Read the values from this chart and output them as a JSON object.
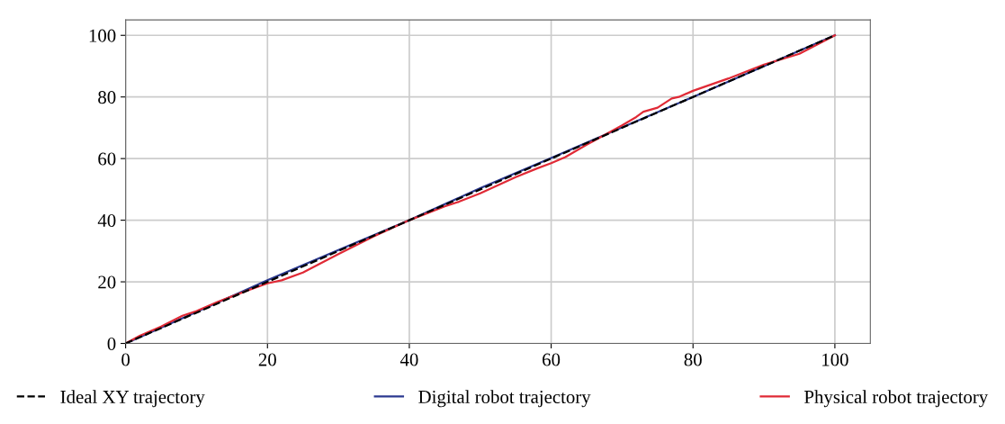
{
  "chart_data": {
    "type": "line",
    "xlim": [
      0,
      105
    ],
    "ylim": [
      0,
      105
    ],
    "xticks": [
      0,
      20,
      40,
      60,
      80,
      100
    ],
    "yticks": [
      0,
      20,
      40,
      60,
      80,
      100
    ],
    "grid": true,
    "legend": "bottom",
    "series": [
      {
        "name": "Ideal XY trajectory",
        "color": "#000000",
        "line_style": "dashed",
        "x": [
          0,
          20,
          40,
          60,
          80,
          100
        ],
        "values": [
          0,
          20,
          40,
          60,
          80,
          100
        ]
      },
      {
        "name": "Digital robot trajectory",
        "color": "#2b3990",
        "line_style": "solid",
        "x": [
          0,
          10,
          20,
          30,
          40,
          50,
          60,
          70,
          80,
          90,
          100
        ],
        "values": [
          0,
          10.2,
          20.5,
          30.3,
          40,
          50.4,
          60.2,
          70.1,
          80,
          90,
          100
        ]
      },
      {
        "name": "Physical robot trajectory",
        "color": "#e02a36",
        "line_style": "solid",
        "x": [
          0,
          2,
          5,
          8,
          10,
          13,
          17,
          20,
          22,
          25,
          30,
          35,
          40,
          45,
          47,
          50,
          55,
          58,
          60,
          62,
          65,
          67,
          70,
          72,
          73,
          75,
          77,
          78,
          80,
          85,
          90,
          95,
          100
        ],
        "values": [
          0,
          2.5,
          5.5,
          9,
          10.5,
          13.5,
          17,
          19.5,
          20.5,
          23,
          29,
          34.8,
          40,
          44.5,
          46,
          48.7,
          54,
          56.8,
          58.5,
          60.5,
          64.5,
          67,
          70.8,
          73.5,
          75.2,
          76.5,
          79.5,
          80,
          82,
          86,
          90.5,
          94,
          100
        ]
      }
    ]
  }
}
